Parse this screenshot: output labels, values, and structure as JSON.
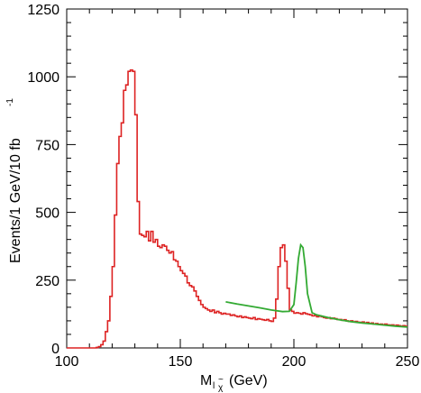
{
  "chart_data": {
    "type": "line",
    "title": "",
    "xlabel": {
      "main": "M",
      "sub": "l",
      "sub2": "χ",
      "accent": "~",
      "unit": "(GeV)"
    },
    "ylabel": {
      "main": "Events/1 GeV/10 fb",
      "sup": "-1"
    },
    "xlim": [
      100,
      250
    ],
    "ylim": [
      0,
      1250
    ],
    "xticks": [
      100,
      150,
      200,
      250
    ],
    "yticks": [
      0,
      250,
      500,
      750,
      1000,
      1250
    ],
    "grid": false,
    "legend": "none",
    "series": [
      {
        "style": "histogram-step",
        "color": "#dd2222",
        "x": [
          100,
          101,
          102,
          103,
          104,
          105,
          106,
          107,
          108,
          109,
          110,
          111,
          112,
          113,
          114,
          115,
          116,
          117,
          118,
          119,
          120,
          121,
          122,
          123,
          124,
          125,
          126,
          127,
          128,
          129,
          130,
          131,
          132,
          133,
          134,
          135,
          136,
          137,
          138,
          139,
          140,
          141,
          142,
          143,
          144,
          145,
          146,
          147,
          148,
          149,
          150,
          151,
          152,
          153,
          154,
          155,
          156,
          157,
          158,
          159,
          160,
          161,
          162,
          163,
          164,
          165,
          166,
          167,
          168,
          169,
          170,
          171,
          172,
          173,
          174,
          175,
          176,
          177,
          178,
          179,
          180,
          181,
          182,
          183,
          184,
          185,
          186,
          187,
          188,
          189,
          190,
          191,
          192,
          193,
          194,
          195,
          196,
          197,
          198,
          199,
          200,
          201,
          202,
          203,
          204,
          205,
          206,
          207,
          208,
          209,
          210,
          211,
          212,
          213,
          214,
          215,
          216,
          217,
          218,
          219,
          220,
          221,
          222,
          223,
          224,
          225,
          226,
          227,
          228,
          229,
          230,
          231,
          232,
          233,
          234,
          235,
          236,
          237,
          238,
          239,
          240,
          241,
          242,
          243,
          244,
          245,
          246,
          247,
          248,
          249
        ],
        "values": [
          0,
          0,
          0,
          0,
          0,
          0,
          0,
          0,
          0,
          0,
          0,
          0,
          0,
          2,
          5,
          12,
          25,
          60,
          100,
          190,
          300,
          490,
          680,
          780,
          830,
          950,
          970,
          1020,
          1025,
          1020,
          860,
          540,
          420,
          415,
          410,
          430,
          395,
          430,
          390,
          400,
          375,
          370,
          380,
          375,
          360,
          350,
          355,
          325,
          320,
          300,
          285,
          275,
          265,
          240,
          230,
          225,
          210,
          190,
          175,
          160,
          150,
          145,
          140,
          135,
          140,
          130,
          135,
          130,
          125,
          128,
          125,
          125,
          120,
          122,
          118,
          115,
          118,
          112,
          115,
          112,
          110,
          108,
          112,
          105,
          108,
          106,
          104,
          102,
          105,
          100,
          98,
          110,
          180,
          300,
          370,
          380,
          320,
          220,
          140,
          135,
          128,
          130,
          128,
          125,
          130,
          126,
          124,
          122,
          118,
          120,
          115,
          118,
          115,
          112,
          110,
          112,
          108,
          110,
          108,
          105,
          105,
          102,
          104,
          100,
          98,
          100,
          96,
          98,
          95,
          94,
          96,
          92,
          94,
          90,
          92,
          88,
          90,
          87,
          88,
          86,
          88,
          85,
          84,
          85,
          82,
          84,
          82,
          80,
          82,
          80
        ],
        "name": ""
      },
      {
        "style": "smooth-fit",
        "color": "#33aa33",
        "x": [
          170,
          175,
          180,
          185,
          190,
          195,
          198,
          200,
          201,
          202,
          203,
          204,
          205,
          206,
          208,
          210,
          215,
          220,
          225,
          230,
          235,
          240,
          245,
          250
        ],
        "values": [
          170,
          162,
          155,
          148,
          140,
          134,
          135,
          160,
          240,
          330,
          380,
          370,
          300,
          200,
          130,
          122,
          112,
          104,
          97,
          92,
          88,
          84,
          80,
          77
        ],
        "name": ""
      }
    ]
  }
}
